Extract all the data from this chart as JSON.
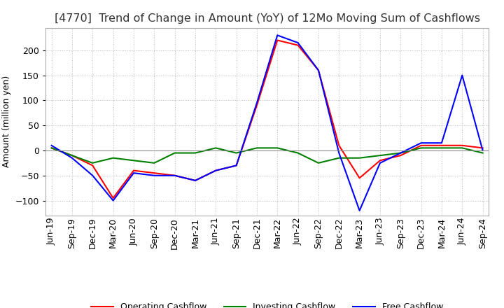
{
  "title": "[4770]  Trend of Change in Amount (YoY) of 12Mo Moving Sum of Cashflows",
  "ylabel": "Amount (million yen)",
  "x_labels": [
    "Jun-19",
    "Sep-19",
    "Dec-19",
    "Mar-20",
    "Jun-20",
    "Sep-20",
    "Dec-20",
    "Mar-21",
    "Jun-21",
    "Sep-21",
    "Dec-21",
    "Mar-22",
    "Jun-22",
    "Sep-22",
    "Dec-22",
    "Mar-23",
    "Jun-23",
    "Sep-23",
    "Dec-23",
    "Mar-24",
    "Jun-24",
    "Sep-24"
  ],
  "operating": [
    5,
    -10,
    -30,
    -95,
    -40,
    -45,
    -50,
    -60,
    -40,
    -30,
    90,
    220,
    210,
    160,
    10,
    -55,
    -20,
    -10,
    10,
    10,
    10,
    5
  ],
  "investing": [
    5,
    -10,
    -25,
    -15,
    -20,
    -25,
    -5,
    -5,
    5,
    -5,
    5,
    5,
    -5,
    -25,
    -15,
    -15,
    -10,
    -5,
    5,
    5,
    5,
    -5
  ],
  "free": [
    10,
    -15,
    -50,
    -100,
    -45,
    -50,
    -50,
    -60,
    -40,
    -30,
    95,
    230,
    215,
    160,
    -5,
    -120,
    -25,
    -5,
    15,
    15,
    150,
    0
  ],
  "operating_color": "#ff0000",
  "investing_color": "#008000",
  "free_color": "#0000ff",
  "background_color": "#ffffff",
  "grid_color": "#bbbbbb",
  "ylim": [
    -130,
    245
  ],
  "yticks": [
    -100,
    -50,
    0,
    50,
    100,
    150,
    200
  ],
  "title_fontsize": 11.5,
  "title_color": "#333333",
  "axis_fontsize": 9,
  "ylabel_fontsize": 9,
  "legend_fontsize": 9,
  "linewidth": 1.5
}
